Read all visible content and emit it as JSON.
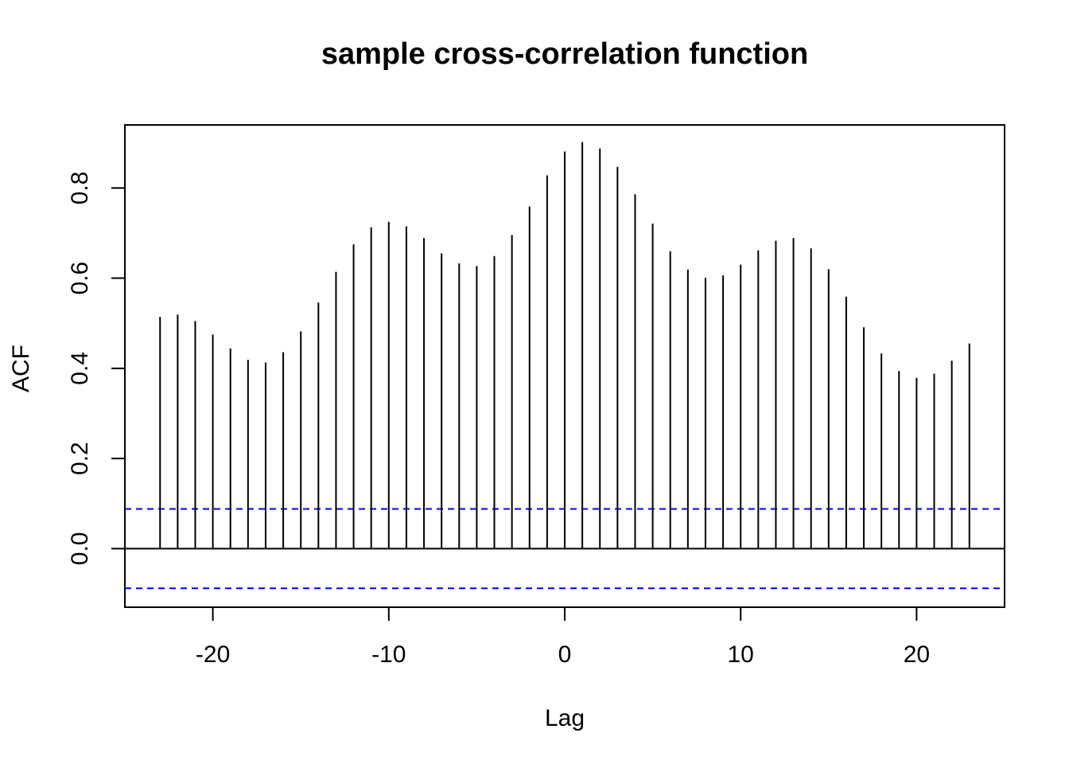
{
  "chart_data": {
    "type": "bar",
    "subtype": "acf-spikes",
    "title": "sample cross-correlation function",
    "xlabel": "Lag",
    "ylabel": "ACF",
    "xlim": [
      -25,
      25
    ],
    "ylim": [
      -0.13,
      0.94
    ],
    "x_ticks": [
      -20,
      -10,
      0,
      10,
      20
    ],
    "x_tick_labels": [
      "-20",
      "-10",
      "0",
      "10",
      "20"
    ],
    "y_ticks": [
      0.0,
      0.2,
      0.4,
      0.6,
      0.8
    ],
    "y_tick_labels": [
      "0.0",
      "0.2",
      "0.4",
      "0.6",
      "0.8"
    ],
    "confidence_band": [
      0.088,
      -0.088
    ],
    "confidence_color": "#0000ff",
    "spike_color": "#000000",
    "x": [
      -23,
      -22,
      -21,
      -20,
      -19,
      -18,
      -17,
      -16,
      -15,
      -14,
      -13,
      -12,
      -11,
      -10,
      -9,
      -8,
      -7,
      -6,
      -5,
      -4,
      -3,
      -2,
      -1,
      0,
      1,
      2,
      3,
      4,
      5,
      6,
      7,
      8,
      9,
      10,
      11,
      12,
      13,
      14,
      15,
      16,
      17,
      18,
      19,
      20,
      21,
      22,
      23
    ],
    "values": [
      0.514,
      0.519,
      0.505,
      0.475,
      0.444,
      0.419,
      0.413,
      0.436,
      0.482,
      0.546,
      0.614,
      0.675,
      0.713,
      0.725,
      0.715,
      0.689,
      0.655,
      0.633,
      0.627,
      0.649,
      0.696,
      0.759,
      0.828,
      0.881,
      0.902,
      0.888,
      0.847,
      0.786,
      0.721,
      0.66,
      0.619,
      0.601,
      0.606,
      0.63,
      0.662,
      0.683,
      0.689,
      0.666,
      0.62,
      0.559,
      0.491,
      0.433,
      0.394,
      0.379,
      0.388,
      0.417,
      0.455
    ]
  }
}
